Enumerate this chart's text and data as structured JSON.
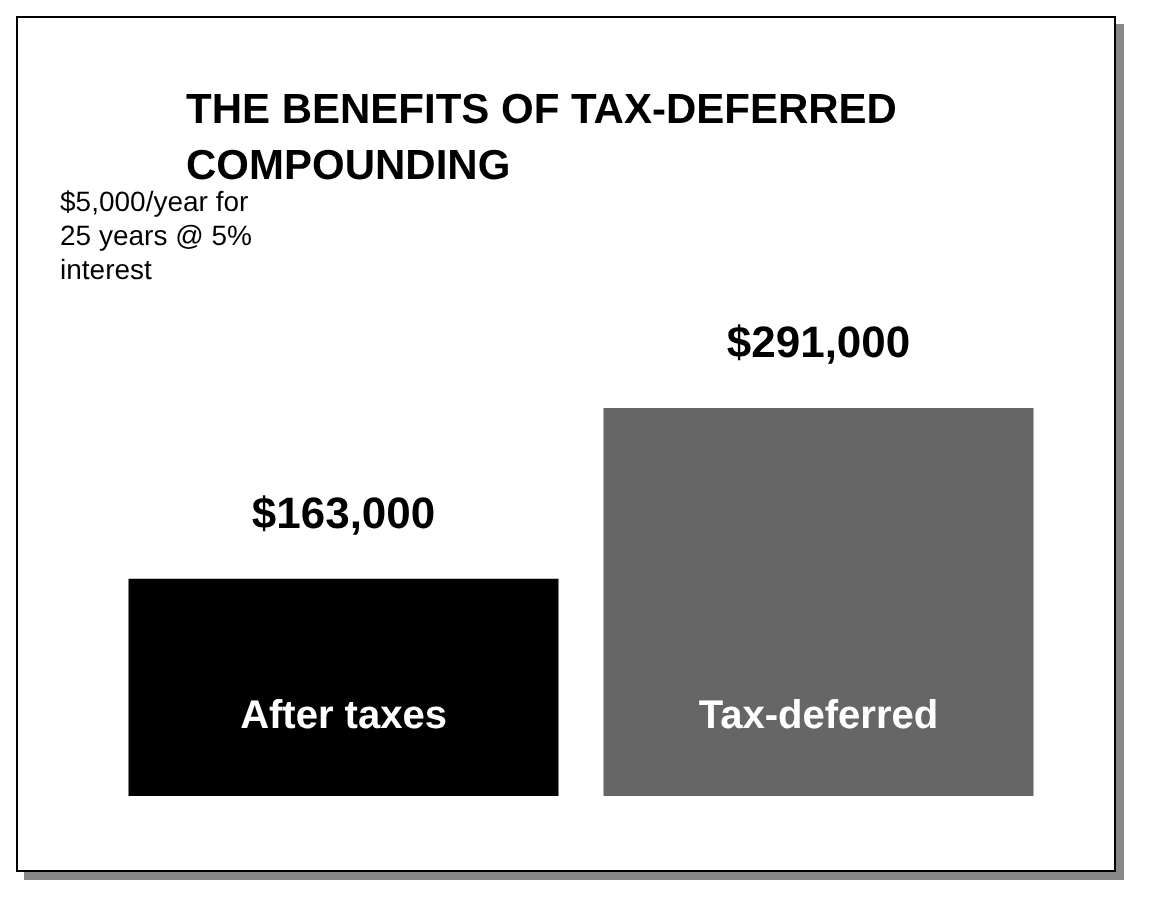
{
  "chart_data": {
    "type": "bar",
    "title": "THE BENEFITS OF TAX-DEFERRED COMPOUNDING",
    "categories": [
      "After taxes",
      "Tax-deferred"
    ],
    "values": [
      163000,
      291000
    ],
    "colors": [
      "#000000",
      "#666666"
    ],
    "value_labels": [
      "$163,000",
      "$291,000"
    ],
    "annotations": [
      "$5,000/year for 25 years @ 5% interest"
    ]
  }
}
